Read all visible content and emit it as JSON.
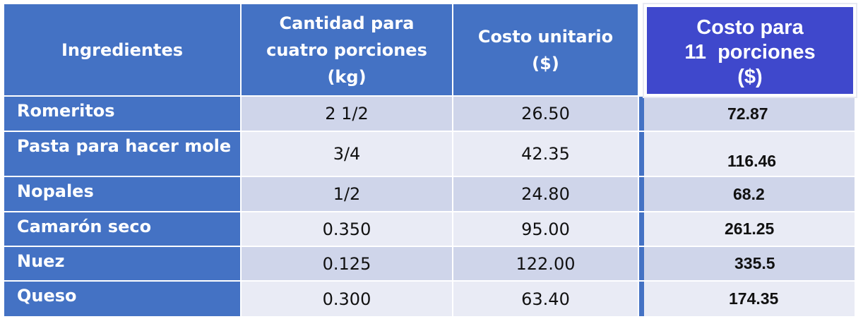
{
  "table": {
    "headers": {
      "ingredients": "Ingredientes",
      "quantity": [
        "Cantidad para",
        "cuatro porciones",
        "(kg)"
      ],
      "unit_cost": [
        "Costo unitario",
        "($)"
      ],
      "cost_11": [
        "Costo para",
        "11  porciones",
        "($)"
      ]
    },
    "rows": [
      {
        "name": "Romeritos",
        "quantity": "2 1/2",
        "unit_cost": "26.50",
        "cost_11": "72.87"
      },
      {
        "name": "Pasta para hacer mole",
        "quantity": "3/4",
        "unit_cost": "42.35",
        "cost_11": "116.46"
      },
      {
        "name": "Nopales",
        "quantity": "1/2",
        "unit_cost": "24.80",
        "cost_11": "68.2"
      },
      {
        "name": "Camarón seco",
        "quantity": "0.350",
        "unit_cost": "95.00",
        "cost_11": "261.25"
      },
      {
        "name": "Nuez",
        "quantity": "0.125",
        "unit_cost": "122.00",
        "cost_11": "335.5"
      },
      {
        "name": "Queso",
        "quantity": "0.300",
        "unit_cost": "63.40",
        "cost_11": "174.35"
      }
    ]
  },
  "colors": {
    "header_blue": "#4472c4",
    "highlight_header": "#3f48cc",
    "row_dark": "#cfd5ea",
    "row_light": "#e9ebf5"
  }
}
